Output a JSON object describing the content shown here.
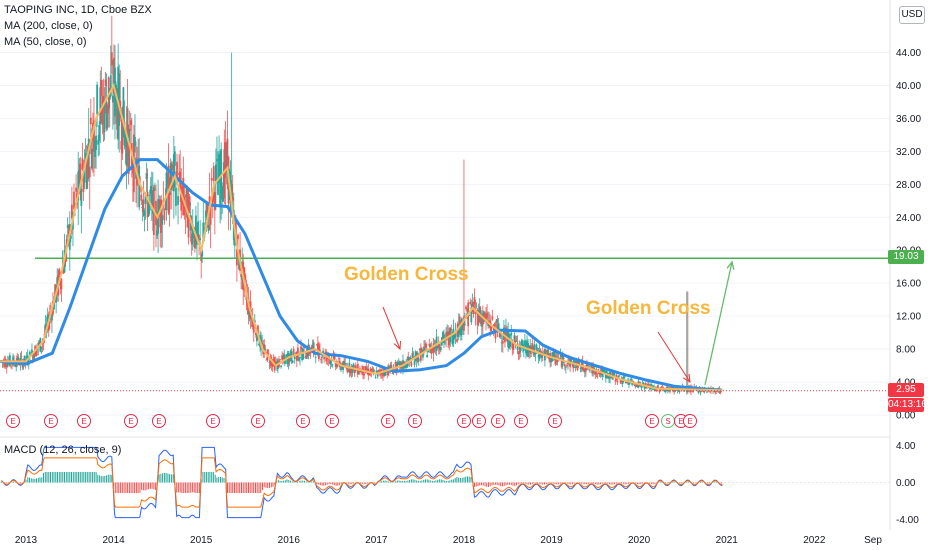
{
  "header": {
    "symbol_line": "TAOPING INC, 1D, Cboe BZX",
    "ma200": "MA (200, close, 0)",
    "ma50": "MA (50, close, 0)",
    "currency": "USD"
  },
  "price_tags": {
    "level": "19.03",
    "last": "2.95",
    "countdown": "04:13:16"
  },
  "annotations": [
    "Golden Cross",
    "Golden Cross"
  ],
  "macd_legend": "MACD (12, 26, close, 9)",
  "colors": {
    "ma200": "#2f8be6",
    "ma50": "#f6b962",
    "level": "#4caf50",
    "arrow_annot": "#e53935",
    "arrow_up": "#66bb6a",
    "last_price": "#f23645",
    "countdown": "#f23645",
    "annotation_text": "#f6b73c",
    "event": "#e0294a"
  },
  "chart_data": [
    {
      "type": "line",
      "title": "TAOPING INC, 1D, Cboe BZX",
      "y_axis_ticks": [
        "0.00",
        "4.00",
        "8.00",
        "12.00",
        "16.00",
        "20.00",
        "24.00",
        "28.00",
        "32.00",
        "36.00",
        "40.00",
        "44.00"
      ],
      "ylim": [
        0,
        48
      ],
      "x_axis_ticks": [
        "2013",
        "2014",
        "2015",
        "2016",
        "2017",
        "2018",
        "2019",
        "2020",
        "2021",
        "2022",
        "Sep"
      ],
      "x_tick_values": [
        2013,
        2014,
        2015,
        2016,
        2017,
        2018,
        2019,
        2020,
        2021,
        2022,
        2022.67
      ],
      "xlim": [
        2012.7,
        2023.2
      ],
      "series": [
        {
          "name": "MA (200, close, 0)",
          "x": [
            2012.7,
            2013.0,
            2013.3,
            2013.5,
            2013.7,
            2013.9,
            2014.1,
            2014.3,
            2014.5,
            2014.7,
            2014.9,
            2015.1,
            2015.3,
            2015.5,
            2015.7,
            2015.9,
            2016.1,
            2016.3,
            2016.6,
            2016.9,
            2017.2,
            2017.5,
            2017.8,
            2018.0,
            2018.2,
            2018.4,
            2018.7,
            2018.9,
            2019.2,
            2019.5,
            2019.8,
            2020.1,
            2020.4,
            2020.7,
            2020.95
          ],
          "values": [
            6.5,
            6.2,
            7.5,
            13,
            19,
            25,
            29,
            31,
            31,
            29,
            27,
            25.5,
            25.3,
            22,
            17,
            12,
            9,
            7.5,
            7.2,
            6.5,
            5.3,
            5.5,
            6,
            7.5,
            9.5,
            10.3,
            10.2,
            8.5,
            7,
            6,
            5,
            4.2,
            3.5,
            3.2,
            3.0
          ]
        },
        {
          "name": "MA (50, close, 0)",
          "x": [
            2012.7,
            2013.0,
            2013.2,
            2013.4,
            2013.6,
            2013.8,
            2014.0,
            2014.15,
            2014.3,
            2014.5,
            2014.7,
            2014.9,
            2015.0,
            2015.15,
            2015.3,
            2015.4,
            2015.55,
            2015.7,
            2015.85,
            2016.0,
            2016.3,
            2016.6,
            2017.0,
            2017.3,
            2017.6,
            2017.9,
            2018.1,
            2018.3,
            2018.6,
            2019.0,
            2019.4,
            2019.8,
            2020.2,
            2020.6,
            2020.95
          ],
          "values": [
            6.5,
            6.5,
            9,
            17,
            27,
            36,
            40,
            34,
            28,
            24,
            29,
            23,
            20,
            28,
            30,
            21,
            13,
            8,
            6,
            7,
            8,
            6,
            5,
            6,
            8,
            10,
            13,
            11,
            8.5,
            7,
            5.8,
            4.3,
            3.2,
            3.1,
            3.0
          ]
        }
      ],
      "last_price": 2.95,
      "horizontal_level": 19.03
    },
    {
      "type": "line",
      "title": "MACD (12, 26, close, 9)",
      "y_axis_ticks": [
        "4.00",
        "0.00",
        "-4.00"
      ],
      "ylim": [
        -4.6,
        4.6
      ]
    }
  ]
}
